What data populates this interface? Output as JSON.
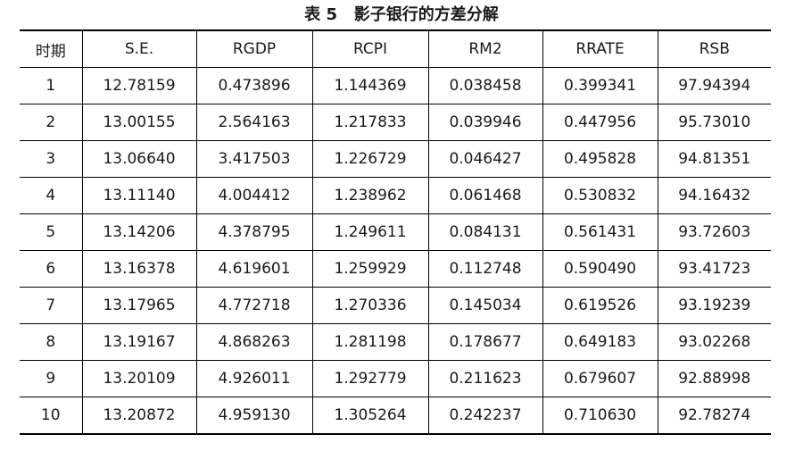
{
  "caption": "表 5   影子银行的方差分解",
  "table": {
    "headers": [
      "时期",
      "S.E.",
      "RGDP",
      "RCPI",
      "RM2",
      "RRATE",
      "RSB"
    ],
    "rows": [
      [
        "1",
        "12.78159",
        "0.473896",
        "1.144369",
        "0.038458",
        "0.399341",
        "97.94394"
      ],
      [
        "2",
        "13.00155",
        "2.564163",
        "1.217833",
        "0.039946",
        "0.447956",
        "95.73010"
      ],
      [
        "3",
        "13.06640",
        "3.417503",
        "1.226729",
        "0.046427",
        "0.495828",
        "94.81351"
      ],
      [
        "4",
        "13.11140",
        "4.004412",
        "1.238962",
        "0.061468",
        "0.530832",
        "94.16432"
      ],
      [
        "5",
        "13.14206",
        "4.378795",
        "1.249611",
        "0.084131",
        "0.561431",
        "93.72603"
      ],
      [
        "6",
        "13.16378",
        "4.619601",
        "1.259929",
        "0.112748",
        "0.590490",
        "93.41723"
      ],
      [
        "7",
        "13.17965",
        "4.772718",
        "1.270336",
        "0.145034",
        "0.619526",
        "93.19239"
      ],
      [
        "8",
        "13.19167",
        "4.868263",
        "1.281198",
        "0.178677",
        "0.649183",
        "93.02268"
      ],
      [
        "9",
        "13.20109",
        "4.926011",
        "1.292779",
        "0.211623",
        "0.679607",
        "92.88998"
      ],
      [
        "10",
        "13.20872",
        "4.959130",
        "1.305264",
        "0.242237",
        "0.710630",
        "92.78274"
      ]
    ]
  }
}
